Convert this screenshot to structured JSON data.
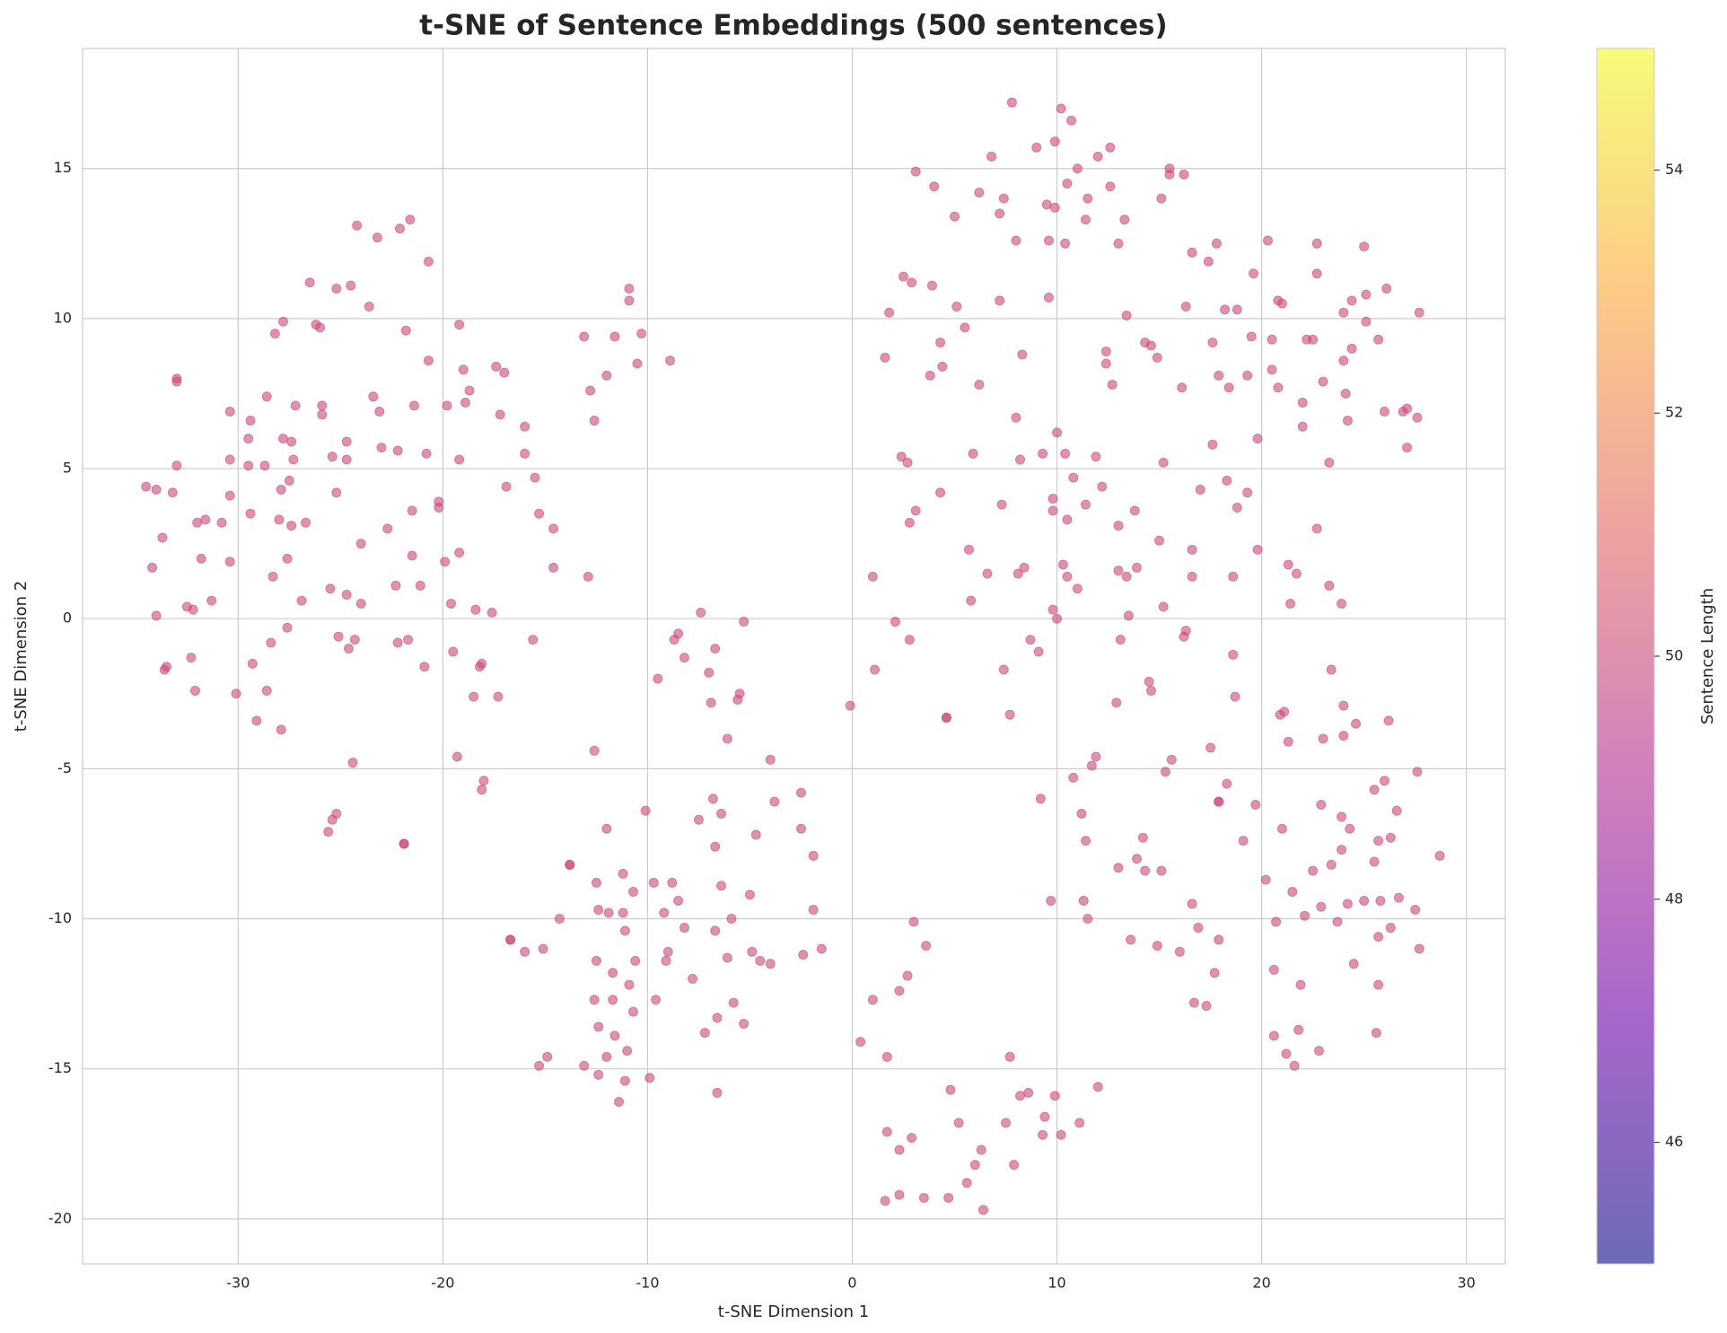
{
  "chart_data": {
    "type": "scatter",
    "title": "t-SNE of Sentence Embeddings (500 sentences)",
    "x_label": "t-SNE Dimension 1",
    "y_label": "t-SNE Dimension 2",
    "color": "#cc4778",
    "alpha": 0.6,
    "grid": true,
    "xlim": [
      -37.6,
      31.9
    ],
    "ylim": [
      -21.5,
      19.0
    ],
    "xticks": [
      -30,
      -20,
      -10,
      0,
      10,
      20,
      30
    ],
    "yticks": [
      -20,
      -15,
      -10,
      -5,
      0,
      5,
      10,
      15
    ],
    "colorbar": {
      "label": "Sentence Length",
      "lim": [
        45,
        55
      ],
      "ticks": [
        46,
        48,
        50,
        52,
        54
      ],
      "colormap": [
        "#0d0887",
        "#6a00a8",
        "#b12a90",
        "#e16462",
        "#fca636",
        "#f0f921"
      ]
    },
    "x": [
      -34.5,
      -34.0,
      -33.2,
      -33.0,
      -33.0,
      -33.0,
      -34.2,
      -33.7,
      -34.0,
      -33.6,
      -33.5,
      -32.5,
      -32.2,
      -32.3,
      -32.1,
      -32.0,
      -31.6,
      -31.8,
      -31.3,
      -30.8,
      -30.4,
      -30.4,
      -30.4,
      -30.4,
      -30.1,
      -29.4,
      -29.5,
      -29.5,
      -29.4,
      -29.3,
      -29.1,
      -28.7,
      -28.6,
      -28.4,
      -28.6,
      -28.3,
      -28.2,
      -28.0,
      -27.9,
      -27.8,
      -27.8,
      -27.9,
      -27.6,
      -27.6,
      -27.5,
      -27.4,
      -27.4,
      -27.3,
      -27.2,
      -26.7,
      -26.9,
      -26.5,
      -26.2,
      -26.0,
      -25.9,
      -25.9,
      -25.5,
      -25.4,
      -25.2,
      -25.2,
      -25.1,
      -25.2,
      -25.4,
      -25.6,
      -24.7,
      -24.7,
      -24.7,
      -24.5,
      -24.6,
      -24.3,
      -24.4,
      -24.2,
      -24.0,
      -24.0,
      -23.6,
      -23.4,
      -23.2,
      -23.1,
      -23.0,
      -22.7,
      -22.3,
      -22.2,
      -22.2,
      -22.1,
      -21.9,
      -21.9,
      -21.8,
      -21.7,
      -21.6,
      -21.5,
      -21.4,
      -21.5,
      -21.1,
      -20.9,
      -20.8,
      -20.7,
      -20.7,
      -20.2,
      -20.2,
      -19.9,
      -19.8,
      -19.6,
      -19.5,
      -19.3,
      -19.2,
      -19.2,
      -19.2,
      -19.0,
      -18.9,
      -18.7,
      -18.5,
      -18.4,
      -18.2,
      -18.1,
      -18.0,
      -18.1,
      -17.6,
      -17.4,
      -17.3,
      -17.2,
      -17.0,
      -16.9,
      -16.7,
      -16.7,
      -16.0,
      -16.0,
      -16.0,
      -15.6,
      -15.5,
      -15.3,
      -15.3,
      -15.1,
      -14.9,
      -14.6,
      -14.6,
      -14.3,
      -13.8,
      -13.8,
      -13.1,
      -13.1,
      -12.9,
      -12.8,
      -12.6,
      -12.6,
      -12.5,
      -12.5,
      -12.6,
      -12.4,
      -12.4,
      -12.4,
      -12.0,
      -12.0,
      -12.0,
      -11.9,
      -11.7,
      -11.7,
      -11.6,
      -11.6,
      -11.4,
      -11.2,
      -11.2,
      -11.1,
      -11.1,
      -11.0,
      -10.9,
      -10.9,
      -10.9,
      -10.7,
      -10.7,
      -10.6,
      -10.5,
      -10.3,
      -10.1,
      -9.9,
      -9.7,
      -9.6,
      -9.5,
      -9.2,
      -9.0,
      -9.1,
      -8.9,
      -8.8,
      -8.7,
      -8.5,
      -8.5,
      -8.2,
      -8.2,
      -7.8,
      -7.5,
      -7.4,
      -7.2,
      -7.0,
      -6.9,
      -6.8,
      -6.7,
      -6.7,
      -6.7,
      -6.6,
      -6.6,
      -6.4,
      -6.4,
      -6.1,
      -6.1,
      -5.9,
      -5.8,
      -5.6,
      -5.5,
      -5.3,
      -5.3,
      -5.0,
      -4.9,
      -4.7,
      -4.5,
      -4.0,
      -4.0,
      -3.8,
      -2.5,
      -2.5,
      -2.4,
      -1.9,
      -1.9,
      -1.5,
      -0.1,
      0.4,
      1.0,
      1.0,
      1.1,
      1.6,
      1.6,
      1.7,
      1.7,
      1.8,
      2.1,
      2.3,
      2.3,
      2.3,
      2.4,
      2.5,
      2.7,
      2.8,
      2.7,
      2.8,
      2.9,
      2.9,
      3.0,
      3.1,
      3.1,
      3.5,
      3.6,
      3.8,
      3.9,
      4.0,
      4.3,
      4.3,
      4.4,
      4.6,
      4.6,
      4.7,
      4.8,
      5.0,
      5.1,
      5.2,
      5.5,
      5.6,
      5.7,
      5.8,
      5.9,
      6.0,
      6.2,
      6.2,
      6.3,
      6.4,
      6.6,
      6.8,
      7.2,
      7.2,
      7.3,
      7.4,
      7.4,
      7.5,
      7.7,
      7.7,
      7.8,
      8.0,
      8.0,
      7.9,
      8.1,
      8.2,
      8.2,
      8.4,
      8.3,
      8.6,
      8.7,
      9.0,
      9.1,
      9.2,
      9.3,
      9.3,
      9.4,
      9.5,
      9.6,
      9.6,
      9.7,
      9.8,
      9.8,
      9.8,
      9.9,
      9.9,
      9.9,
      10.0,
      10.0,
      10.2,
      10.2,
      10.3,
      10.4,
      10.4,
      10.5,
      10.5,
      10.5,
      10.7,
      10.8,
      10.8,
      11.0,
      11.0,
      11.1,
      11.2,
      11.3,
      11.4,
      11.4,
      11.4,
      11.5,
      11.5,
      11.7,
      11.9,
      12.0,
      11.9,
      12.0,
      12.2,
      12.4,
      12.4,
      12.6,
      12.6,
      12.7,
      12.9,
      13.0,
      13.0,
      13.0,
      13.1,
      13.0,
      13.3,
      13.4,
      13.4,
      13.5,
      13.6,
      13.8,
      13.9,
      13.9,
      14.2,
      14.3,
      14.3,
      14.5,
      14.6,
      14.6,
      14.9,
      14.9,
      15.0,
      15.1,
      15.1,
      15.2,
      15.2,
      15.3,
      15.5,
      15.5,
      15.6,
      16.0,
      16.1,
      16.2,
      16.3,
      16.2,
      16.3,
      16.6,
      16.6,
      16.6,
      16.6,
      16.7,
      16.9,
      17.0,
      17.3,
      17.4,
      17.6,
      17.5,
      17.6,
      17.7,
      17.8,
      17.9,
      17.9,
      17.9,
      17.9,
      18.2,
      18.3,
      18.3,
      18.4,
      18.6,
      18.6,
      18.7,
      18.8,
      18.8,
      19.1,
      19.3,
      19.3,
      19.5,
      19.6,
      19.7,
      19.8,
      19.8,
      20.2,
      20.3,
      20.5,
      20.5,
      20.6,
      20.6,
      20.7,
      20.8,
      20.8,
      20.9,
      21.0,
      21.0,
      21.1,
      21.2,
      21.3,
      21.3,
      21.4,
      21.5,
      21.6,
      21.7,
      21.9,
      21.8,
      22.0,
      22.0,
      22.1,
      22.2,
      22.5,
      22.5,
      22.7,
      22.7,
      22.7,
      22.8,
      22.9,
      22.9,
      23.0,
      23.0,
      23.3,
      23.3,
      23.4,
      23.4,
      23.7,
      23.9,
      23.9,
      23.9,
      24.0,
      24.0,
      24.0,
      24.0,
      24.1,
      24.2,
      24.2,
      24.3,
      24.4,
      24.4,
      24.6,
      24.5,
      25.0,
      25.0,
      25.1,
      25.1,
      25.5,
      25.5,
      25.6,
      25.7,
      25.7,
      25.7,
      25.7,
      25.8,
      26.0,
      26.0,
      26.1,
      26.2,
      26.3,
      26.3,
      26.6,
      26.7,
      26.9,
      27.1,
      27.1,
      27.5,
      27.6,
      27.7,
      27.6,
      27.7,
      28.7
    ],
    "y": [
      4.4,
      4.3,
      4.2,
      5.1,
      8.0,
      7.9,
      1.7,
      2.7,
      0.1,
      -1.7,
      -1.6,
      0.4,
      0.3,
      -1.3,
      -2.4,
      3.2,
      3.3,
      2.0,
      0.6,
      3.2,
      6.9,
      5.3,
      4.1,
      1.9,
      -2.5,
      6.6,
      6.0,
      5.1,
      3.5,
      -1.5,
      -3.4,
      5.1,
      7.4,
      -0.8,
      -2.4,
      1.4,
      9.5,
      3.3,
      4.3,
      6.0,
      9.9,
      -3.7,
      2.0,
      -0.3,
      4.6,
      5.9,
      3.1,
      5.3,
      7.1,
      3.2,
      0.6,
      11.2,
      9.8,
      9.7,
      7.1,
      6.8,
      1.0,
      5.4,
      11.0,
      4.2,
      -0.6,
      -6.5,
      -6.7,
      -7.1,
      0.8,
      5.9,
      5.3,
      11.1,
      -1.0,
      -0.7,
      -4.8,
      13.1,
      2.5,
      0.5,
      10.4,
      7.4,
      12.7,
      6.9,
      5.7,
      3.0,
      1.1,
      -0.8,
      5.6,
      13.0,
      -7.5,
      -7.5,
      9.6,
      -0.7,
      13.3,
      3.6,
      7.1,
      2.1,
      1.1,
      -1.6,
      5.5,
      8.6,
      11.9,
      3.7,
      3.9,
      1.9,
      7.1,
      0.5,
      -1.1,
      -4.6,
      9.8,
      2.2,
      5.3,
      8.3,
      7.2,
      7.6,
      -2.6,
      0.3,
      -1.6,
      -1.5,
      -5.4,
      -5.7,
      0.2,
      8.4,
      -2.6,
      6.8,
      8.2,
      4.4,
      -10.7,
      -10.7,
      6.4,
      5.5,
      -11.1,
      -0.7,
      4.7,
      3.5,
      -14.9,
      -11.0,
      -14.6,
      3.0,
      1.7,
      -10.0,
      -8.2,
      -8.2,
      9.4,
      -14.9,
      1.4,
      7.6,
      -4.4,
      6.6,
      -8.8,
      -11.4,
      -12.7,
      -9.7,
      -13.6,
      -15.2,
      -14.6,
      -7.0,
      8.1,
      -9.8,
      -11.8,
      -12.7,
      9.4,
      -13.9,
      -16.1,
      -8.5,
      -9.8,
      -10.4,
      -15.4,
      -14.4,
      -12.2,
      11.0,
      10.6,
      -9.1,
      -13.1,
      -11.4,
      8.5,
      9.5,
      -6.4,
      -15.3,
      -8.8,
      -12.7,
      -2.0,
      -9.8,
      -11.1,
      -11.4,
      8.6,
      -8.8,
      -0.7,
      -0.5,
      -9.4,
      -1.3,
      -10.3,
      -12.0,
      -6.7,
      0.2,
      -13.8,
      -1.8,
      -2.8,
      -6.0,
      -10.4,
      -7.6,
      -1.0,
      -13.3,
      -15.8,
      -8.9,
      -6.5,
      -11.3,
      -4.0,
      -10.0,
      -12.8,
      -2.7,
      -2.5,
      -13.5,
      -0.1,
      -9.2,
      -11.1,
      -7.2,
      -11.4,
      -4.7,
      -11.5,
      -6.1,
      -5.8,
      -7.0,
      -11.2,
      -9.7,
      -7.9,
      -11.0,
      -2.9,
      -14.1,
      -12.7,
      1.4,
      -1.7,
      8.7,
      -19.4,
      -17.1,
      -14.6,
      10.2,
      -0.1,
      -12.4,
      -17.7,
      -19.2,
      5.4,
      11.4,
      5.2,
      -0.7,
      -11.9,
      3.2,
      11.2,
      -17.3,
      -10.1,
      3.6,
      14.9,
      -19.3,
      -10.9,
      8.1,
      11.1,
      14.4,
      9.2,
      4.2,
      8.4,
      -3.3,
      -3.3,
      -19.3,
      -15.7,
      13.4,
      10.4,
      -16.8,
      9.7,
      -18.8,
      2.3,
      0.6,
      5.5,
      -18.2,
      7.8,
      14.2,
      -17.7,
      -19.7,
      1.5,
      15.4,
      13.5,
      10.6,
      3.8,
      14.0,
      -1.7,
      -16.8,
      -14.6,
      -3.2,
      17.2,
      12.6,
      6.7,
      -18.2,
      1.5,
      -15.9,
      5.3,
      1.7,
      8.8,
      -15.8,
      -0.7,
      15.7,
      -1.1,
      -6.0,
      -17.2,
      5.5,
      -16.6,
      13.8,
      10.7,
      12.6,
      -9.4,
      3.6,
      4.0,
      0.3,
      13.7,
      15.9,
      -15.9,
      6.2,
      0.0,
      17.0,
      -17.2,
      1.8,
      5.5,
      12.5,
      14.5,
      3.3,
      1.4,
      16.6,
      -5.3,
      4.7,
      15.0,
      1.0,
      -16.8,
      -6.5,
      -9.4,
      -7.4,
      13.3,
      3.8,
      14.0,
      -10.0,
      -4.9,
      -4.6,
      15.4,
      5.4,
      -15.6,
      4.4,
      8.5,
      8.9,
      15.7,
      14.4,
      7.8,
      -2.8,
      12.5,
      3.1,
      1.6,
      -0.7,
      -8.3,
      13.3,
      1.4,
      10.1,
      0.1,
      -10.7,
      3.6,
      -8.0,
      1.7,
      -7.3,
      -8.4,
      9.2,
      -2.1,
      -2.4,
      9.1,
      8.7,
      -10.9,
      2.6,
      14.0,
      -8.4,
      5.2,
      0.4,
      -5.1,
      15.0,
      14.8,
      -4.7,
      -11.1,
      7.7,
      -0.6,
      -0.4,
      14.8,
      10.4,
      12.2,
      2.3,
      1.4,
      -9.5,
      -12.8,
      -10.3,
      4.3,
      -12.9,
      11.9,
      9.2,
      -4.3,
      5.8,
      -11.8,
      12.5,
      8.1,
      -6.1,
      -6.1,
      -10.7,
      10.3,
      4.6,
      -5.5,
      7.7,
      1.4,
      -1.2,
      -2.6,
      3.7,
      10.3,
      -7.4,
      8.1,
      4.2,
      9.4,
      11.5,
      -6.2,
      6.0,
      2.3,
      -8.7,
      12.6,
      8.3,
      9.3,
      -11.7,
      -13.9,
      -10.1,
      7.7,
      10.6,
      -3.2,
      10.5,
      -7.0,
      -3.1,
      -14.5,
      -4.1,
      1.8,
      0.5,
      -9.1,
      -14.9,
      1.5,
      -12.2,
      -13.7,
      7.2,
      6.4,
      -9.9,
      9.3,
      9.3,
      -8.4,
      3.0,
      12.5,
      11.5,
      -14.4,
      -9.6,
      -6.2,
      -4.0,
      7.9,
      1.1,
      5.2,
      -1.7,
      -8.2,
      -10.1,
      0.5,
      -7.7,
      -6.6,
      10.2,
      8.6,
      -3.9,
      -2.9,
      7.5,
      6.6,
      -9.5,
      -7.0,
      9.0,
      10.6,
      -3.5,
      -11.5,
      -9.4,
      12.4,
      9.9,
      10.8,
      -5.7,
      -8.1,
      -13.8,
      -12.2,
      9.3,
      -7.4,
      -10.6,
      -9.4,
      6.9,
      -5.4,
      11.0,
      -3.4,
      -10.3,
      -7.3,
      -6.4,
      -9.3,
      6.9,
      7.0,
      5.7,
      -9.7,
      6.7,
      10.2,
      -5.1,
      -11.0,
      -7.9
    ]
  }
}
